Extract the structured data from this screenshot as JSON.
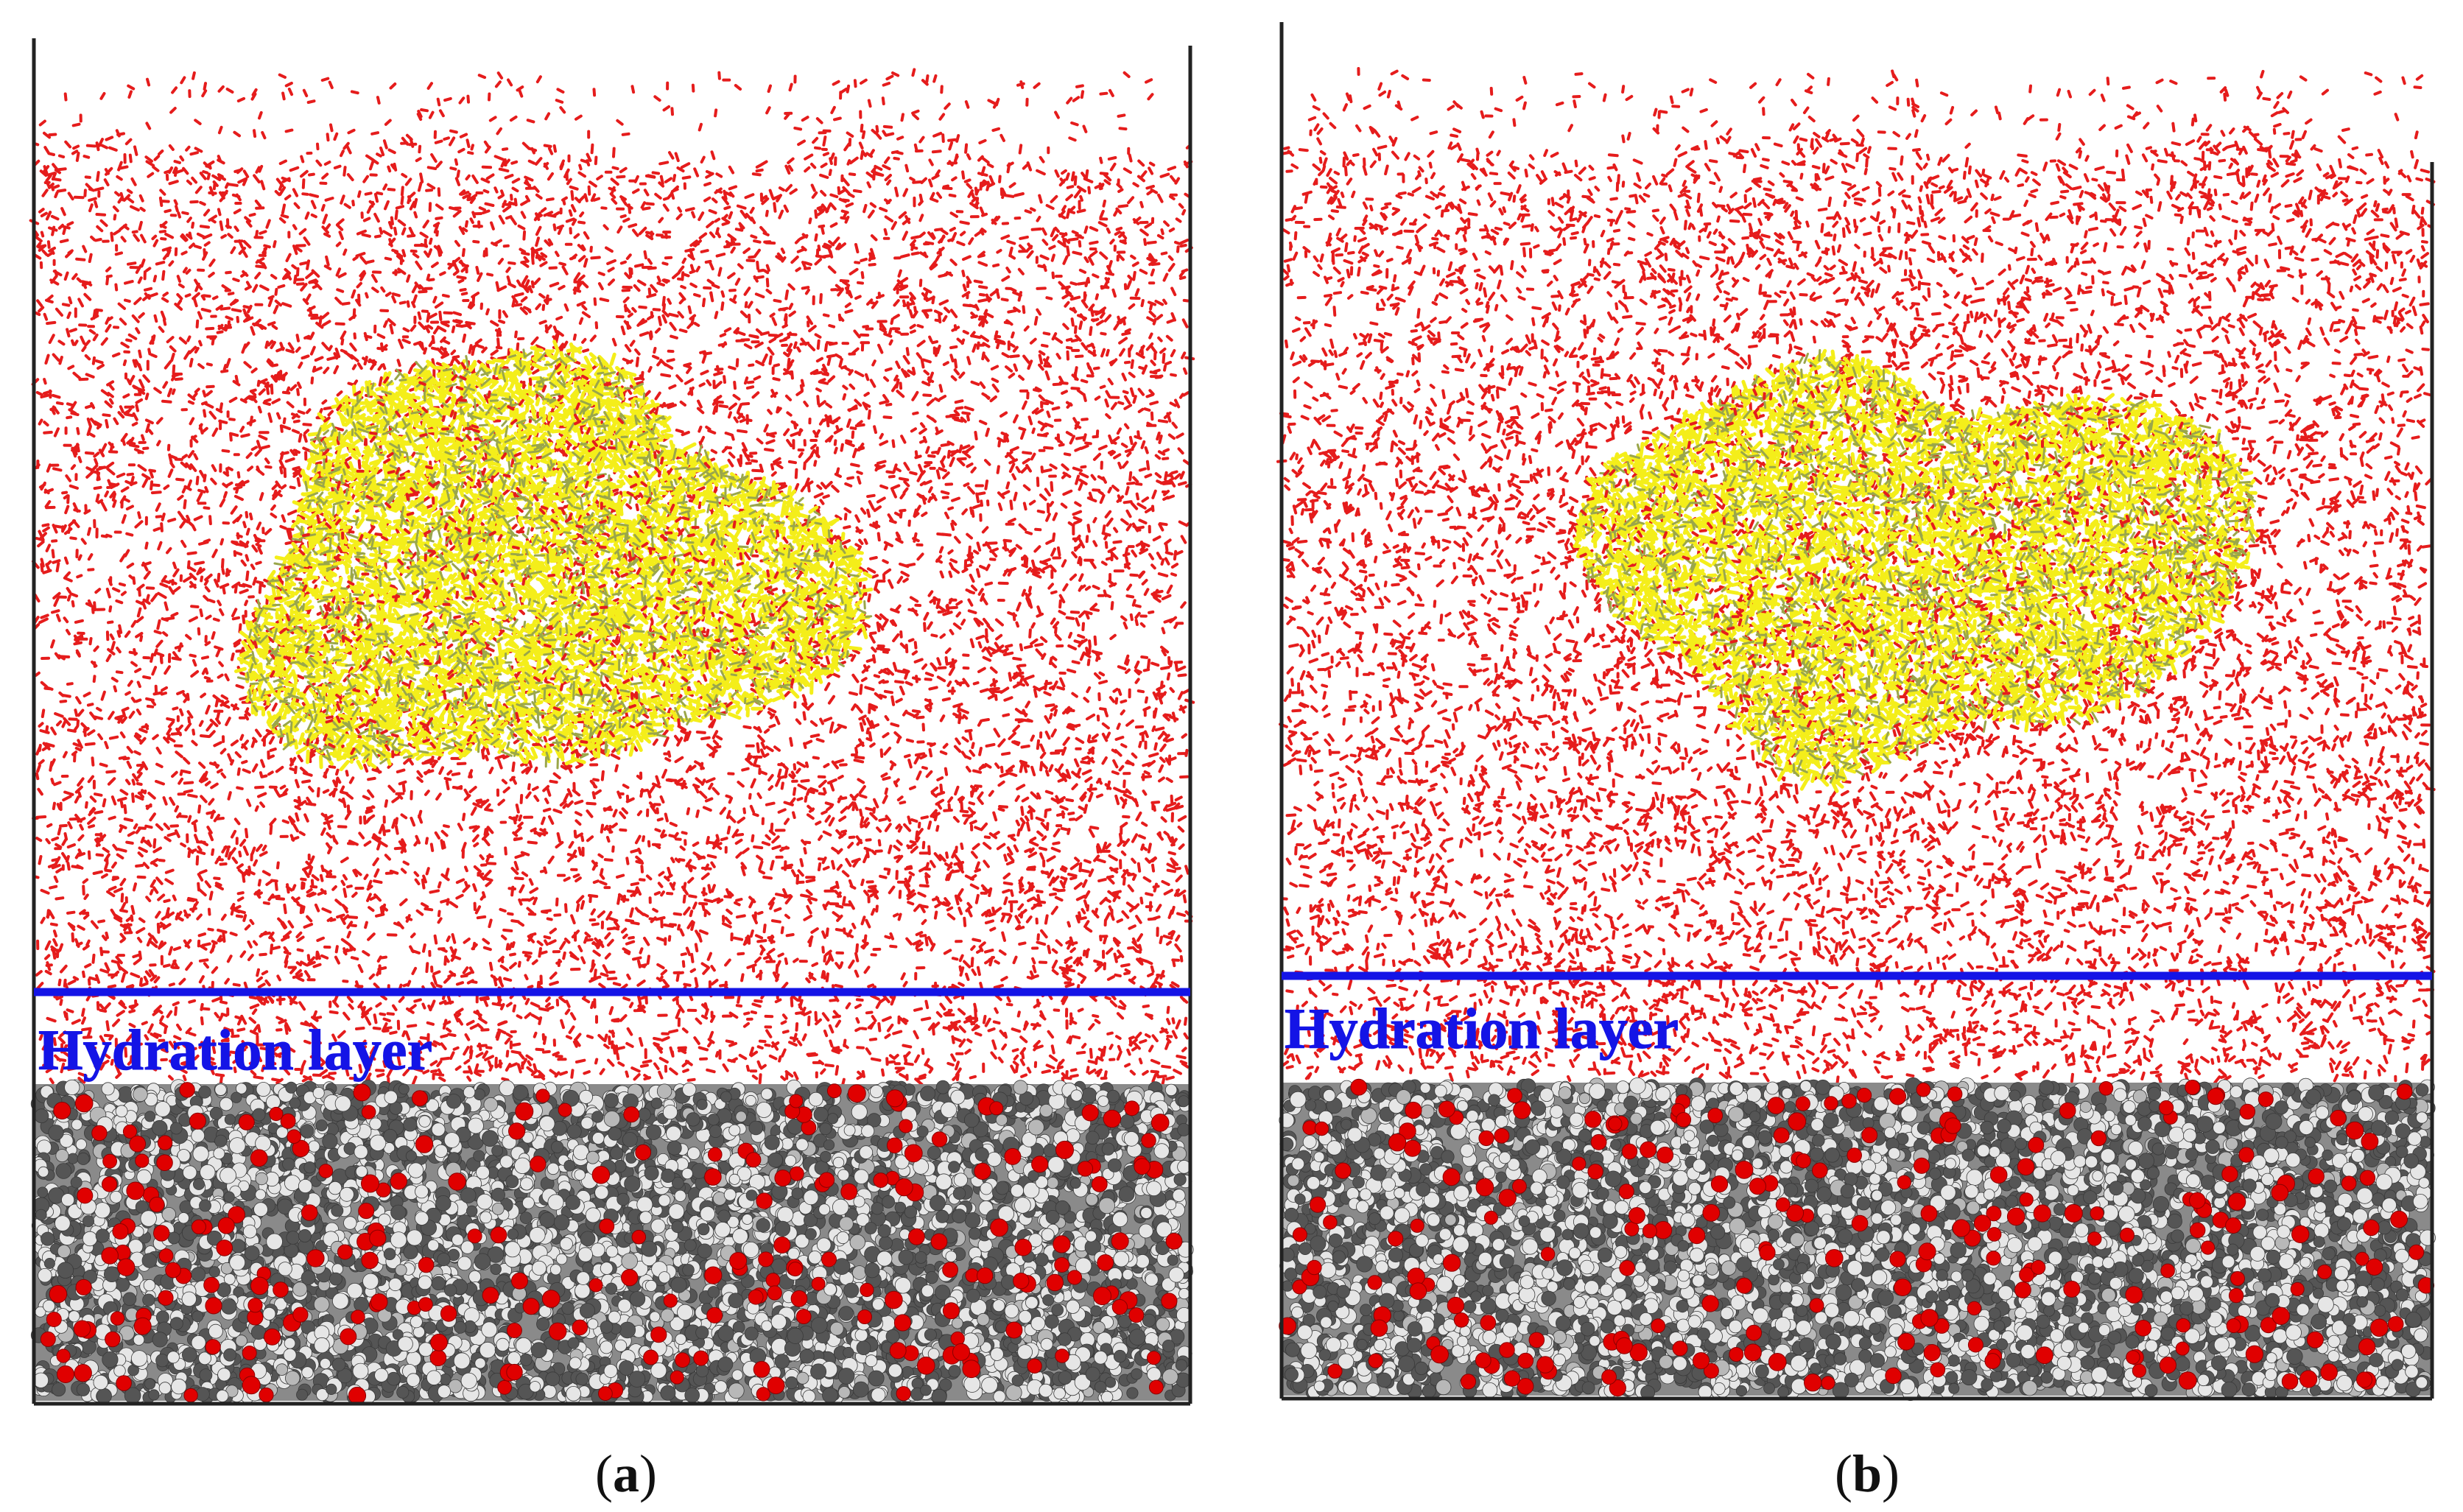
{
  "panels": [
    {
      "id": "a",
      "hydration_label": "Hydration layer",
      "caption_open": "(",
      "caption_letter": "a",
      "caption_close": ")"
    },
    {
      "id": "b",
      "hydration_label": "Hydration layer",
      "caption_open": "(",
      "caption_letter": "b",
      "caption_close": ")"
    }
  ],
  "colors": {
    "water_molecules": "#e51c1c",
    "oil_droplet": "#f4ee1a",
    "oil_droplet_bond": "#9aa64a",
    "hydration_line": "#1414e6",
    "surface_carbon": "#555555",
    "surface_hydrogen": "#e6e6e6",
    "surface_oxygen": "#e00000",
    "box_edge": "#222222"
  }
}
